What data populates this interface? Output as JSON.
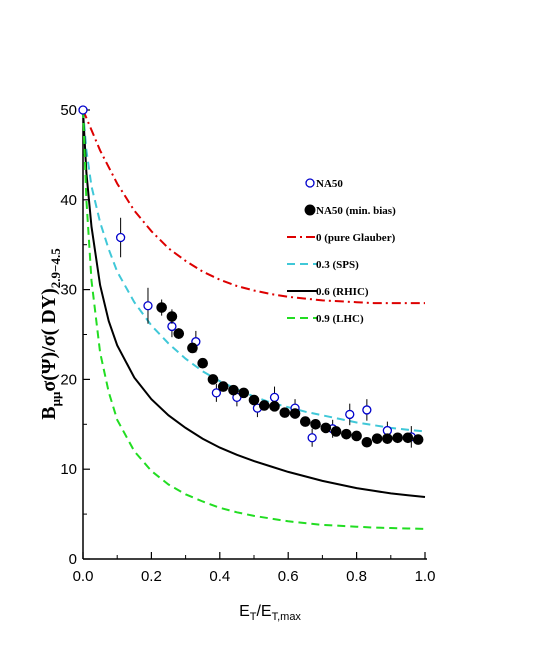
{
  "chart_data": {
    "type": "scatter",
    "title": "",
    "xlabel": {
      "main": "E",
      "sub1": "T",
      "mid": "/E",
      "sub2": "T,max"
    },
    "ylabel": {
      "p1": "B",
      "sub1": "μμ",
      "p2": "σ(Ψ)/σ( DY)",
      "sub2": "2.9−4.5"
    },
    "xlim": [
      0,
      1.0
    ],
    "ylim": [
      0,
      50
    ],
    "xticks": [
      "0.0",
      "0.2",
      "0.4",
      "0.6",
      "0.8",
      "1.0"
    ],
    "yticks": [
      "0",
      "10",
      "20",
      "30",
      "40",
      "50"
    ],
    "grid": false,
    "legend_position": "right",
    "series": [
      {
        "name": "NA50",
        "kind": "points",
        "marker": "open-circle",
        "color": "#0000cc",
        "x": [
          0.0,
          0.11,
          0.19,
          0.26,
          0.33,
          0.39,
          0.45,
          0.51,
          0.56,
          0.62,
          0.67,
          0.73,
          0.78,
          0.83,
          0.89,
          0.96
        ],
        "y": [
          50.0,
          35.8,
          28.2,
          25.9,
          24.2,
          18.5,
          18.0,
          16.8,
          18.0,
          16.8,
          13.5,
          14.5,
          16.1,
          16.6,
          14.3,
          13.6
        ],
        "err": [
          0,
          2.2,
          2.0,
          1.2,
          1.2,
          1.0,
          1.0,
          1.0,
          1.2,
          1.0,
          1.0,
          1.0,
          1.2,
          1.2,
          1.0,
          1.2
        ]
      },
      {
        "name": "NA50 (min. bias)",
        "kind": "points",
        "marker": "filled-circle",
        "color": "#000000",
        "x": [
          0.23,
          0.26,
          0.28,
          0.32,
          0.35,
          0.38,
          0.41,
          0.44,
          0.47,
          0.5,
          0.53,
          0.56,
          0.59,
          0.62,
          0.65,
          0.68,
          0.71,
          0.74,
          0.77,
          0.8,
          0.83,
          0.86,
          0.89,
          0.92,
          0.95,
          0.98
        ],
        "y": [
          28.0,
          27.0,
          25.1,
          23.5,
          21.8,
          20.0,
          19.2,
          18.8,
          18.5,
          17.7,
          17.1,
          17.0,
          16.3,
          16.2,
          15.3,
          15.0,
          14.6,
          14.2,
          13.9,
          13.7,
          13.0,
          13.4,
          13.4,
          13.5,
          13.5,
          13.3
        ],
        "err": [
          0.9,
          0.8,
          0.6,
          0.5,
          0.5,
          0.5,
          0.4,
          0.4,
          0.4,
          0.4,
          0.4,
          0.4,
          0.4,
          0.4,
          0.4,
          0.4,
          0.4,
          0.4,
          0.4,
          0.4,
          0.4,
          0.4,
          0.4,
          0.4,
          0.4,
          0.4
        ]
      },
      {
        "name": "0   (pure Glauber)",
        "kind": "curve",
        "dash": "dash-dot",
        "color": "#dd0000",
        "x": [
          0.0,
          0.05,
          0.1,
          0.15,
          0.2,
          0.25,
          0.3,
          0.35,
          0.4,
          0.45,
          0.5,
          0.55,
          0.6,
          0.65,
          0.7,
          0.75,
          0.8,
          0.85,
          0.9,
          0.95,
          1.0
        ],
        "y": [
          50.0,
          45.5,
          41.8,
          38.8,
          36.5,
          34.6,
          33.2,
          32.0,
          31.1,
          30.4,
          29.9,
          29.5,
          29.2,
          29.0,
          28.8,
          28.7,
          28.6,
          28.5,
          28.5,
          28.5,
          28.5
        ]
      },
      {
        "name": "0.3 (SPS)",
        "kind": "curve",
        "dash": "dash",
        "color": "#40c8d8",
        "x": [
          0.0,
          0.01,
          0.025,
          0.05,
          0.075,
          0.1,
          0.15,
          0.2,
          0.25,
          0.3,
          0.35,
          0.4,
          0.45,
          0.5,
          0.55,
          0.6,
          0.65,
          0.7,
          0.75,
          0.8,
          0.85,
          0.9,
          0.95,
          1.0
        ],
        "y": [
          50.0,
          45.5,
          41.5,
          37.5,
          34.5,
          32.0,
          28.6,
          26.0,
          24.0,
          22.3,
          20.9,
          19.8,
          18.9,
          18.1,
          17.4,
          16.9,
          16.4,
          16.0,
          15.6,
          15.2,
          14.9,
          14.6,
          14.4,
          14.2
        ]
      },
      {
        "name": "0.6 (RHIC)",
        "kind": "curve",
        "dash": "solid",
        "color": "#000000",
        "x": [
          0.0,
          0.01,
          0.025,
          0.05,
          0.075,
          0.1,
          0.15,
          0.2,
          0.25,
          0.3,
          0.35,
          0.4,
          0.45,
          0.5,
          0.55,
          0.6,
          0.65,
          0.7,
          0.75,
          0.8,
          0.85,
          0.9,
          0.95,
          1.0
        ],
        "y": [
          50.0,
          43.0,
          37.0,
          30.5,
          26.5,
          23.8,
          20.2,
          17.8,
          16.0,
          14.6,
          13.4,
          12.4,
          11.6,
          10.9,
          10.3,
          9.7,
          9.2,
          8.7,
          8.3,
          7.9,
          7.6,
          7.3,
          7.1,
          6.9
        ]
      },
      {
        "name": "0.9 (LHC)",
        "kind": "curve",
        "dash": "dash",
        "color": "#22dd22",
        "x": [
          0.0,
          0.01,
          0.025,
          0.05,
          0.075,
          0.1,
          0.15,
          0.2,
          0.25,
          0.3,
          0.35,
          0.4,
          0.45,
          0.5,
          0.55,
          0.6,
          0.65,
          0.7,
          0.75,
          0.8,
          0.85,
          0.9,
          0.95,
          1.0
        ],
        "y": [
          50.0,
          40.0,
          31.0,
          23.0,
          18.6,
          15.5,
          12.0,
          9.8,
          8.3,
          7.2,
          6.4,
          5.7,
          5.2,
          4.8,
          4.5,
          4.2,
          4.0,
          3.8,
          3.7,
          3.6,
          3.5,
          3.45,
          3.4,
          3.35
        ]
      }
    ]
  }
}
